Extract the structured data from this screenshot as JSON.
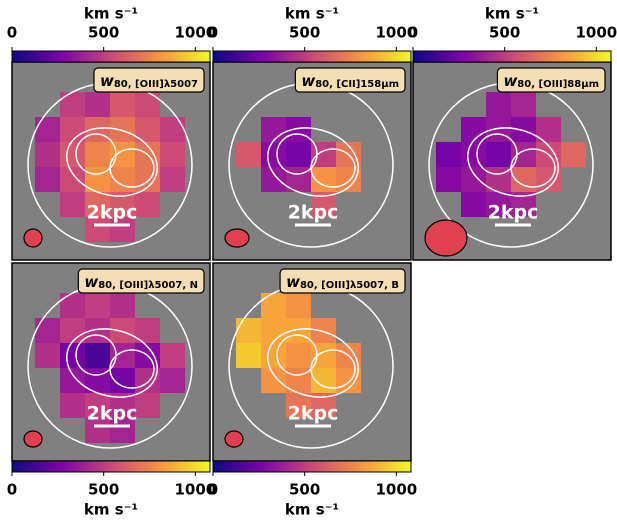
{
  "colorbar": {
    "label": "km s⁻¹",
    "lim": [
      0,
      1080
    ],
    "ticks": [
      0,
      500,
      1000
    ]
  },
  "scale_label": "2kpc",
  "chart_data": [
    {
      "type": "heatmap",
      "title_symbol": "w",
      "title_sub": "80, [OIII]λ5007",
      "values": [
        [
          null,
          500,
          450,
          600,
          550,
          null
        ],
        [
          400,
          550,
          650,
          700,
          600,
          500
        ],
        [
          450,
          600,
          750,
          800,
          700,
          550
        ],
        [
          400,
          550,
          800,
          750,
          700,
          500
        ],
        [
          null,
          500,
          650,
          600,
          550,
          null
        ],
        [
          null,
          null,
          550,
          500,
          null,
          null
        ]
      ]
    },
    {
      "type": "heatmap",
      "title_symbol": "w",
      "title_sub": "80, [CII]158μm",
      "values": [
        [
          null,
          null,
          null,
          null,
          null,
          null
        ],
        [
          null,
          350,
          300,
          null,
          null,
          null
        ],
        [
          600,
          300,
          250,
          500,
          700,
          null
        ],
        [
          null,
          350,
          400,
          800,
          750,
          null
        ],
        [
          null,
          null,
          null,
          600,
          null,
          null
        ],
        [
          null,
          null,
          null,
          null,
          null,
          null
        ]
      ]
    },
    {
      "type": "heatmap",
      "title_symbol": "w",
      "title_sub": "80, [OIII]88μm",
      "values": [
        [
          null,
          null,
          350,
          400,
          null,
          null
        ],
        [
          null,
          300,
          350,
          300,
          450,
          null
        ],
        [
          250,
          300,
          250,
          400,
          550,
          650
        ],
        [
          300,
          350,
          450,
          650,
          600,
          null
        ],
        [
          null,
          300,
          350,
          400,
          null,
          null
        ],
        [
          null,
          null,
          null,
          null,
          null,
          null
        ]
      ]
    },
    {
      "type": "heatmap",
      "title_symbol": "w",
      "title_sub": "80, [OIII]λ5007, N",
      "values": [
        [
          null,
          450,
          500,
          450,
          null,
          null
        ],
        [
          400,
          500,
          450,
          550,
          500,
          null
        ],
        [
          450,
          250,
          150,
          400,
          300,
          500
        ],
        [
          null,
          350,
          300,
          250,
          450,
          400
        ],
        [
          null,
          450,
          500,
          450,
          500,
          null
        ],
        [
          null,
          null,
          450,
          400,
          null,
          null
        ]
      ]
    },
    {
      "type": "heatmap",
      "title_symbol": "w",
      "title_sub": "80, [OIII]λ5007, B",
      "values": [
        [
          null,
          850,
          800,
          null,
          null,
          null
        ],
        [
          900,
          850,
          850,
          750,
          null,
          null
        ],
        [
          950,
          850,
          800,
          850,
          750,
          null
        ],
        [
          null,
          800,
          750,
          900,
          800,
          null
        ],
        [
          null,
          null,
          700,
          650,
          null,
          null
        ],
        [
          null,
          null,
          null,
          null,
          null,
          null
        ]
      ]
    }
  ]
}
